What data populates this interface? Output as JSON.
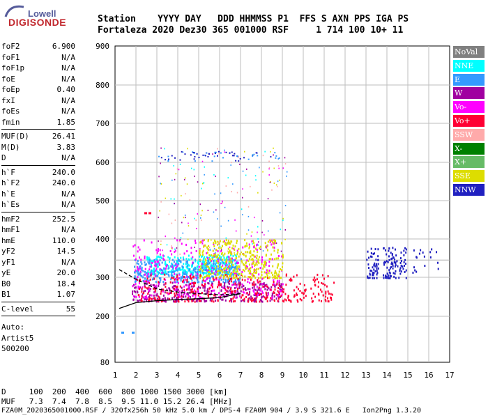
{
  "logo": {
    "line1": "Lowell",
    "line2": "DIGISONDE"
  },
  "header": {
    "row1": "Station    YYYY DAY   DDD HHMMSS P1  FFS S AXN PPS IGA PS",
    "row2": "Fortaleza 2020 Dez30 365 001000 RSF     1 714 100 10+ 11"
  },
  "params": {
    "group1": [
      {
        "key": "foF2",
        "value": "6.900"
      },
      {
        "key": "foF1",
        "value": "N/A"
      },
      {
        "key": "foF1p",
        "value": "N/A"
      },
      {
        "key": "foE",
        "value": "N/A"
      },
      {
        "key": "foEp",
        "value": "0.40"
      },
      {
        "key": "fxI",
        "value": "N/A"
      },
      {
        "key": "foEs",
        "value": "N/A"
      },
      {
        "key": "fmin",
        "value": "1.85"
      }
    ],
    "group2": [
      {
        "key": "MUF(D)",
        "value": "26.41"
      },
      {
        "key": "M(D)",
        "value": "3.83"
      },
      {
        "key": "D",
        "value": "N/A"
      }
    ],
    "group3": [
      {
        "key": "h`F",
        "value": "240.0"
      },
      {
        "key": "h`F2",
        "value": "240.0"
      },
      {
        "key": "h`E",
        "value": "N/A"
      },
      {
        "key": "h`Es",
        "value": "N/A"
      }
    ],
    "group4": [
      {
        "key": "hmF2",
        "value": "252.5"
      },
      {
        "key": "hmF1",
        "value": "N/A"
      },
      {
        "key": "hmE",
        "value": "110.0"
      },
      {
        "key": "yF2",
        "value": "14.5"
      },
      {
        "key": "yF1",
        "value": "N/A"
      },
      {
        "key": "yE",
        "value": "20.0"
      },
      {
        "key": "B0",
        "value": "18.4"
      },
      {
        "key": "B1",
        "value": "1.07"
      }
    ],
    "group5": [
      {
        "key": "C-level",
        "value": "55"
      }
    ]
  },
  "notes": [
    "Auto:",
    "Artist5",
    "500200"
  ],
  "footer": {
    "d_row": "D     100  200  400  600  800 1000 1500 3000 [km]",
    "muf_row": "MUF   7.3  7.4  7.8  8.5  9.5 11.0 15.2 26.4 [MHz]",
    "file_row": "FZA0M_2020365001000.RSF / 320fx256h 50 kHz 5.0 km / DPS-4 FZA0M 904 / 3.9 S 321.6 E   Ion2Png 1.3.20"
  },
  "legend": [
    {
      "label": "NoVal",
      "color": "#808080"
    },
    {
      "label": "NNE",
      "color": "#00ffff"
    },
    {
      "label": "E",
      "color": "#3399ff"
    },
    {
      "label": "W",
      "color": "#a000a0"
    },
    {
      "label": "Vo-",
      "color": "#ff00ff"
    },
    {
      "label": "Vo+",
      "color": "#ff0033"
    },
    {
      "label": "SSW",
      "color": "#ffaaaa"
    },
    {
      "label": "X-",
      "color": "#008000"
    },
    {
      "label": "X+",
      "color": "#66bb66"
    },
    {
      "label": "SSE",
      "color": "#dddd00"
    },
    {
      "label": "NNW",
      "color": "#2020c0"
    }
  ],
  "chart_data": {
    "type": "scatter",
    "xlabel": "",
    "ylabel": "",
    "xlim": [
      1,
      17
    ],
    "ylim": [
      80,
      900
    ],
    "xticks": [
      1,
      2,
      3,
      4,
      5,
      6,
      7,
      8,
      9,
      10,
      11,
      12,
      13,
      14,
      15,
      16,
      17
    ],
    "yticks": [
      80,
      200,
      300,
      400,
      500,
      600,
      700,
      800,
      900
    ],
    "grid": true,
    "reference_line_y": 345,
    "series_clusters": [
      {
        "name": "NNE",
        "x_range": [
          2.5,
          6.8
        ],
        "h_range": [
          310,
          360
        ]
      },
      {
        "name": "E",
        "x_range": [
          1.9,
          7
        ],
        "h_range": [
          290,
          350
        ]
      },
      {
        "name": "W",
        "x_range": [
          1.8,
          9
        ],
        "h_range": [
          240,
          290
        ]
      },
      {
        "name": "Vo-",
        "x_range": [
          1.8,
          9
        ],
        "h_range": [
          250,
          400
        ]
      },
      {
        "name": "Vo+",
        "x_range": [
          2,
          11.5
        ],
        "h_range": [
          240,
          310
        ]
      },
      {
        "name": "SSE",
        "x_range": [
          5,
          9
        ],
        "h_range": [
          300,
          400
        ]
      },
      {
        "name": "NNW",
        "x_range": [
          12.5,
          16.5
        ],
        "h_range": [
          300,
          380
        ]
      }
    ],
    "profile_curves": [
      {
        "points": [
          [
            1.2,
            220
          ],
          [
            2,
            235
          ],
          [
            3,
            240
          ],
          [
            4,
            243
          ],
          [
            5,
            245
          ],
          [
            6,
            248
          ],
          [
            7,
            258
          ]
        ]
      },
      {
        "points": [
          [
            1.2,
            320
          ],
          [
            2,
            295
          ],
          [
            3,
            270
          ],
          [
            4,
            262
          ],
          [
            5,
            258
          ],
          [
            6,
            255
          ],
          [
            7,
            258
          ]
        ]
      }
    ]
  }
}
